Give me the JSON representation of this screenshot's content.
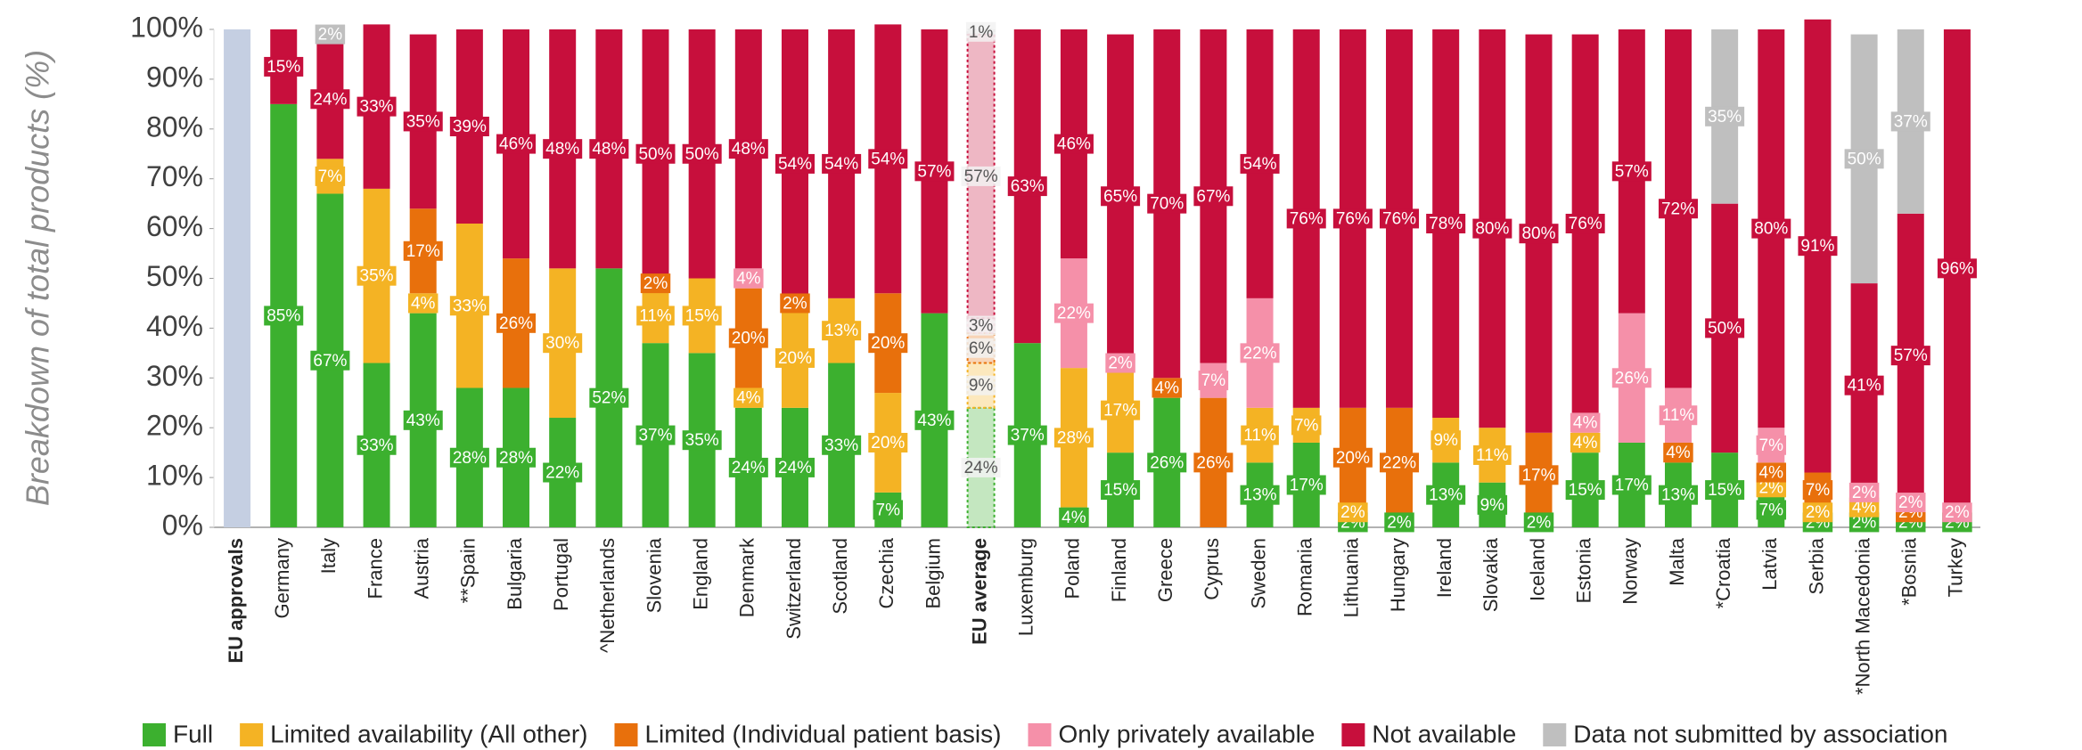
{
  "chart_data": {
    "type": "stacked_bar",
    "y_label": "Breakdown of total products (%)",
    "categories": [
      "EU approvals",
      "Germany",
      "Italy",
      "France",
      "Austria",
      "**Spain",
      "Bulgaria",
      "Portugal",
      "^Netherlands",
      "Slovenia",
      "England",
      "Denmark",
      "Switzerland",
      "Scotland",
      "Czechia",
      "Belgium",
      "EU average",
      "Luxemburg",
      "Poland",
      "Finland",
      "Greece",
      "Cyprus",
      "Sweden",
      "Romania",
      "Lithuania",
      "Hungary",
      "Ireland",
      "Slovakia",
      "Iceland",
      "Estonia",
      "Norway",
      "Malta",
      "*Croatia",
      "Latvia",
      "Serbia",
      "*North Macedonia",
      "*Bosnia",
      "Turkey"
    ],
    "reference_bar": {
      "category": 0,
      "value": 100,
      "color": "#c5cfe2"
    },
    "bold_categories": [
      0,
      16
    ],
    "dashed_categories": [
      16
    ],
    "series": [
      {
        "name": "Full",
        "color": "#3cb02f",
        "values": [
          null,
          85,
          67,
          33,
          43,
          28,
          28,
          22,
          52,
          37,
          35,
          24,
          24,
          33,
          7,
          43,
          24,
          37,
          4,
          15,
          26,
          null,
          13,
          17,
          2,
          2,
          13,
          9,
          2,
          15,
          17,
          13,
          15,
          7,
          2,
          2,
          2,
          2
        ],
        "value_labels": [
          null,
          "85%",
          "67%",
          "33%",
          "43%",
          "28%",
          "28%",
          "22%",
          "52%",
          "37%",
          "35%",
          "24%",
          "24%",
          "33%",
          "7%",
          "43%",
          "24%",
          "37%",
          "4%",
          "15%",
          "26%",
          null,
          "13%",
          "17%",
          "2%",
          "2%",
          "13%",
          "9%",
          "2%",
          "15%",
          "17%",
          "13%",
          "15%",
          "7%",
          "2%",
          "2%",
          "2%",
          "2%"
        ]
      },
      {
        "name": "Limited availability (All other)",
        "color": "#f4b324",
        "values": [
          null,
          null,
          7,
          35,
          4,
          33,
          null,
          30,
          null,
          11,
          15,
          4,
          20,
          13,
          20,
          null,
          9,
          null,
          28,
          17,
          null,
          null,
          11,
          7,
          2,
          null,
          9,
          11,
          null,
          4,
          null,
          null,
          null,
          2,
          2,
          4,
          null,
          null
        ],
        "value_labels": [
          null,
          null,
          "7%",
          "35%",
          "4%",
          "33%",
          null,
          "30%",
          null,
          "11%",
          "15%",
          "4%",
          "20%",
          "13%",
          "20%",
          null,
          "9%",
          null,
          "28%",
          "17%",
          null,
          null,
          "11%",
          "7%",
          "2%",
          null,
          "9%",
          "11%",
          null,
          "4%",
          null,
          null,
          null,
          "2%",
          "2%",
          "4%",
          null,
          null
        ]
      },
      {
        "name": "Limited (Individual patient basis)",
        "color": "#e8700c",
        "values": [
          null,
          null,
          null,
          null,
          17,
          null,
          26,
          null,
          null,
          2,
          null,
          20,
          2,
          null,
          20,
          null,
          6,
          null,
          null,
          null,
          4,
          26,
          null,
          null,
          20,
          22,
          null,
          null,
          17,
          null,
          null,
          4,
          null,
          4,
          7,
          null,
          2,
          null
        ],
        "value_labels": [
          null,
          null,
          null,
          null,
          "17%",
          null,
          "26%",
          null,
          null,
          "2%",
          null,
          "20%",
          "2%",
          null,
          "20%",
          null,
          "6%",
          null,
          null,
          null,
          "4%",
          "26%",
          null,
          null,
          "20%",
          "22%",
          null,
          null,
          "17%",
          null,
          null,
          "4%",
          null,
          "4%",
          "7%",
          null,
          "2%",
          null
        ]
      },
      {
        "name": "Only privately available",
        "color": "#f590a9",
        "values": [
          null,
          null,
          null,
          null,
          null,
          null,
          null,
          null,
          null,
          null,
          null,
          4,
          null,
          null,
          null,
          null,
          3,
          null,
          22,
          2,
          null,
          7,
          22,
          null,
          null,
          null,
          null,
          null,
          null,
          4,
          26,
          11,
          null,
          7,
          null,
          2,
          2,
          2
        ],
        "value_labels": [
          null,
          null,
          null,
          null,
          null,
          null,
          null,
          null,
          null,
          null,
          null,
          "4%",
          null,
          null,
          null,
          null,
          "3%",
          null,
          "22%",
          "2%",
          null,
          "7%",
          "22%",
          null,
          null,
          null,
          null,
          null,
          null,
          "4%",
          "26%",
          "11%",
          null,
          "7%",
          null,
          "2%",
          "2%",
          "2%"
        ]
      },
      {
        "name": "Not available",
        "color": "#c70f3c",
        "values": [
          null,
          15,
          24,
          33,
          35,
          39,
          46,
          48,
          48,
          50,
          50,
          48,
          54,
          54,
          54,
          57,
          57,
          63,
          46,
          65,
          70,
          67,
          54,
          76,
          76,
          76,
          78,
          80,
          80,
          76,
          57,
          72,
          50,
          80,
          91,
          41,
          57,
          96
        ],
        "value_labels": [
          null,
          "15%",
          "24%",
          "33%",
          "35%",
          "39%",
          "46%",
          "48%",
          "48%",
          "50%",
          "50%",
          "48%",
          "54%",
          "54%",
          "54%",
          "57%",
          "57%",
          "63%",
          "46%",
          "65%",
          "70%",
          "67%",
          "54%",
          "76%",
          "76%",
          "76%",
          "78%",
          "80%",
          "80%",
          "76%",
          "57%",
          "72%",
          "50%",
          "80%",
          "91%",
          "41%",
          "57%",
          "96%"
        ]
      },
      {
        "name": "Data not submitted by association",
        "color": "#bfbfbf",
        "values": [
          null,
          null,
          2,
          null,
          null,
          null,
          null,
          null,
          null,
          null,
          null,
          null,
          null,
          null,
          null,
          null,
          1,
          null,
          null,
          null,
          null,
          null,
          null,
          null,
          null,
          null,
          null,
          null,
          null,
          null,
          null,
          null,
          35,
          null,
          null,
          50,
          37,
          null
        ],
        "value_labels": [
          null,
          null,
          "2%",
          null,
          null,
          null,
          null,
          null,
          null,
          null,
          null,
          null,
          null,
          null,
          null,
          null,
          "1%",
          null,
          null,
          null,
          null,
          null,
          null,
          null,
          null,
          null,
          null,
          null,
          null,
          null,
          null,
          null,
          "35%",
          null,
          null,
          "50%",
          "37%",
          null
        ]
      }
    ],
    "ylim": [
      0,
      100
    ],
    "yticks": [
      {
        "value": 0,
        "label": "0%"
      },
      {
        "value": 10,
        "label": "10%"
      },
      {
        "value": 20,
        "label": "20%"
      },
      {
        "value": 30,
        "label": "30%"
      },
      {
        "value": 40,
        "label": "40%"
      },
      {
        "value": 50,
        "label": "50%"
      },
      {
        "value": 60,
        "label": "60%"
      },
      {
        "value": 70,
        "label": "70%"
      },
      {
        "value": 80,
        "label": "80%"
      },
      {
        "value": 90,
        "label": "90%"
      },
      {
        "value": 100,
        "label": "100%"
      }
    ],
    "grid": false,
    "legend": "bottom"
  }
}
